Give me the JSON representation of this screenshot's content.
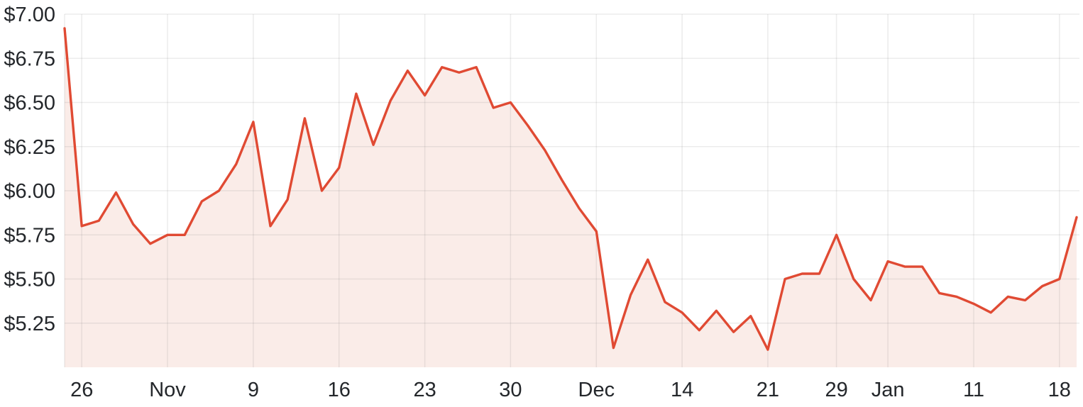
{
  "chart": {
    "colors": {
      "line": "#e04a33",
      "fill": "#faece8",
      "grid_stroke": "#6b6b6b",
      "grid_opacity": 0.13,
      "label": "#24272b",
      "background": "#ffffff"
    }
  },
  "chart_data": {
    "type": "area",
    "title": "",
    "xlabel": "",
    "ylabel": "",
    "currency": "$",
    "ylim": [
      5.0,
      7.0
    ],
    "grid": true,
    "legend": false,
    "y_tick_values": [
      7.0,
      6.75,
      6.5,
      6.25,
      6.0,
      5.75,
      5.5,
      5.25
    ],
    "y_tick_labels": [
      "$7.00",
      "$6.75",
      "$6.50",
      "$6.25",
      "$6.00",
      "$5.75",
      "$5.50",
      "$5.25"
    ],
    "x_tick_labels": [
      "26",
      "Nov",
      "9",
      "16",
      "23",
      "30",
      "Dec",
      "14",
      "21",
      "29",
      "Jan",
      "11",
      "18"
    ],
    "x_tick_indices": [
      1,
      6,
      11,
      16,
      21,
      26,
      31,
      36,
      41,
      45,
      48,
      53,
      58
    ],
    "values": [
      6.92,
      5.8,
      5.83,
      5.99,
      5.81,
      5.7,
      5.75,
      5.75,
      5.94,
      6.0,
      6.15,
      6.39,
      5.8,
      5.95,
      6.41,
      6.0,
      6.13,
      6.55,
      6.26,
      6.51,
      6.68,
      6.54,
      6.7,
      6.67,
      6.7,
      6.47,
      6.5,
      6.37,
      6.23,
      6.06,
      5.9,
      5.77,
      5.11,
      5.41,
      5.61,
      5.37,
      5.31,
      5.21,
      5.32,
      5.2,
      5.29,
      5.1,
      5.5,
      5.53,
      5.53,
      5.75,
      5.5,
      5.38,
      5.6,
      5.57,
      5.57,
      5.42,
      5.4,
      5.36,
      5.31,
      5.4,
      5.38,
      5.46,
      5.5,
      5.85
    ]
  }
}
